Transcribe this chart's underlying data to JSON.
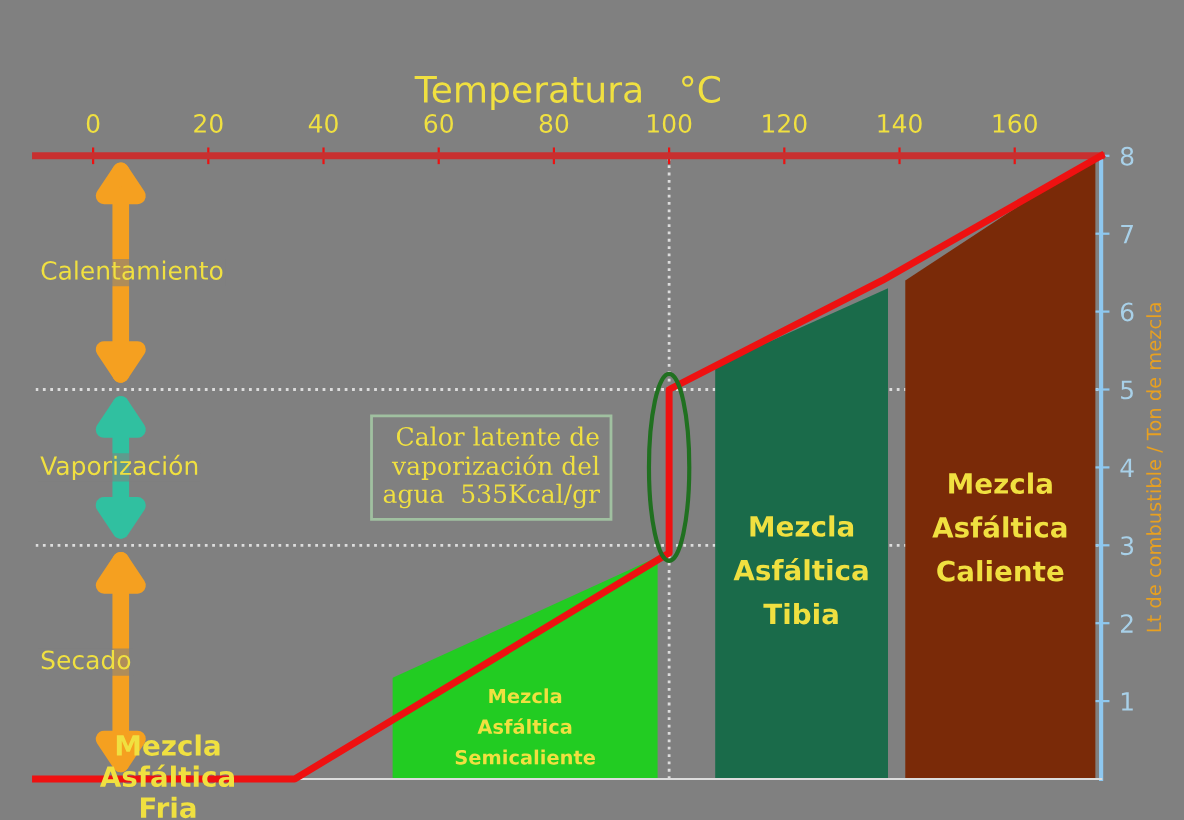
{
  "chart_data": {
    "type": "line",
    "xlabel": "Temperatura   °C",
    "ylabel": "Lt de combustible / Ton de mezcla",
    "xlim": [
      -10,
      175
    ],
    "xticks": [
      0,
      20,
      40,
      60,
      80,
      100,
      120,
      140,
      160
    ],
    "ylim": [
      0,
      8
    ],
    "yticks": [
      1,
      2,
      3,
      4,
      5,
      6,
      7,
      8
    ],
    "grid": false,
    "legend": false,
    "series": [
      {
        "name": "Mezcla\nAsfáltica\nSemicaliente",
        "type": "area",
        "color": "#22cc22",
        "x": [
          52,
          98
        ],
        "values": [
          1.3,
          2.85
        ]
      },
      {
        "name": "Mezcla\nAsfáltica\nTibia",
        "type": "area",
        "color": "#1a6b4a",
        "x": [
          108,
          138
        ],
        "values": [
          5.3,
          6.3
        ]
      },
      {
        "name": "Mezcla\nAsfáltica\nCaliente",
        "type": "area",
        "color": "#7a2a08",
        "x": [
          141,
          174
        ],
        "values": [
          6.4,
          8
        ]
      },
      {
        "color": "#ee1111",
        "x": [
          -10,
          35,
          100,
          100,
          137,
          175
        ],
        "values": [
          0,
          0,
          2.9,
          5,
          6.4,
          8
        ]
      }
    ],
    "ref_lines": [
      {
        "axis": "y",
        "value": 3,
        "line_style": "dotted",
        "color": "#dddddd"
      },
      {
        "axis": "y",
        "value": 5,
        "line_style": "dotted",
        "color": "#dddddd"
      },
      {
        "axis": "x",
        "value": 100,
        "line_style": "dotted",
        "color": "#dddddd"
      }
    ],
    "annotations": [
      "Calentamiento",
      "Vaporización",
      "Secado",
      {
        "text": "Calor latente de\nvaporización del\nagua  535Kcal/gr",
        "x": 100,
        "y": 4
      },
      {
        "text": "Mezcla\nAsfáltica\nFria",
        "x": 35,
        "y": 0
      }
    ]
  }
}
